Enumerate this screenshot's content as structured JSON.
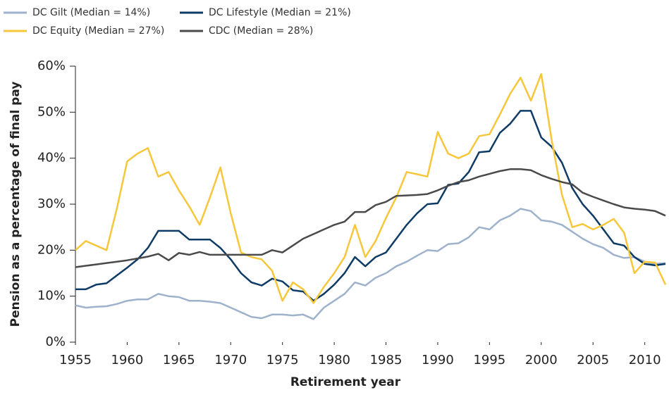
{
  "chart_data": {
    "type": "line",
    "x": [
      1955,
      1956,
      1957,
      1958,
      1959,
      1960,
      1961,
      1962,
      1963,
      1964,
      1965,
      1966,
      1967,
      1968,
      1969,
      1970,
      1971,
      1972,
      1973,
      1974,
      1975,
      1976,
      1977,
      1978,
      1979,
      1980,
      1981,
      1982,
      1983,
      1984,
      1985,
      1986,
      1987,
      1988,
      1989,
      1990,
      1991,
      1992,
      1993,
      1994,
      1995,
      1996,
      1997,
      1998,
      1999,
      2000,
      2001,
      2002,
      2003,
      2004,
      2005,
      2006,
      2007,
      2008,
      2009,
      2010,
      2011,
      2012
    ],
    "series": [
      {
        "name": "DC Gilt (Median = 14%)",
        "color": "#9fb2cc",
        "values": [
          8,
          7.5,
          7.7,
          7.8,
          8.3,
          9,
          9.3,
          9.3,
          10.5,
          10,
          9.8,
          9,
          9,
          8.8,
          8.5,
          7.5,
          6.5,
          5.5,
          5.2,
          6,
          6,
          5.8,
          6,
          5,
          7.5,
          9,
          10.5,
          13,
          12.3,
          14,
          15,
          16.5,
          17.5,
          18.8,
          20,
          19.8,
          21.3,
          21.5,
          22.8,
          25,
          24.5,
          26.5,
          27.5,
          29,
          28.5,
          26.5,
          26.2,
          25.5,
          24,
          22.5,
          21.3,
          20.5,
          19,
          18.3,
          18.5,
          17.5,
          17,
          17.2
        ]
      },
      {
        "name": "DC Lifestyle (Median = 21%)",
        "color": "#0d3b66",
        "values": [
          11.5,
          11.5,
          12.5,
          12.8,
          14.5,
          16.2,
          18,
          20.5,
          24.2,
          24.2,
          24.2,
          22.3,
          22.3,
          22.3,
          20.5,
          18,
          15,
          13,
          12.3,
          13.8,
          13.2,
          11.3,
          11,
          9,
          10.5,
          12.5,
          15,
          18.5,
          16.5,
          18.5,
          19.5,
          22.5,
          25.5,
          28,
          30,
          30.2,
          34.2,
          34.5,
          37,
          41.3,
          41.5,
          45.5,
          47.5,
          50.3,
          50.3,
          44.5,
          42.5,
          39,
          33.5,
          30,
          27.5,
          24.5,
          21.5,
          21,
          18.5,
          17,
          16.7,
          17
        ]
      },
      {
        "name": "DC Equity (Median = 27%)",
        "color": "#f6c73b",
        "values": [
          20,
          22,
          21,
          20,
          29,
          39.3,
          41,
          42.2,
          36,
          37,
          33,
          29.5,
          25.5,
          31.5,
          38,
          28,
          19.5,
          18.5,
          18,
          15.5,
          9,
          13,
          11.5,
          8.5,
          12,
          15,
          18.5,
          25.5,
          18.5,
          22,
          27,
          31.5,
          37,
          36.5,
          36,
          45.7,
          41,
          40,
          41,
          44.8,
          45.2,
          49.5,
          54,
          57.5,
          52.5,
          58.3,
          44,
          32,
          25,
          25.7,
          24.5,
          25.5,
          26.8,
          23.8,
          15,
          17.5,
          17.3,
          12.5
        ]
      },
      {
        "name": "CDC (Median = 28%)",
        "color": "#4a4a4a",
        "values": [
          16.3,
          16.6,
          16.9,
          17.2,
          17.5,
          17.8,
          18.2,
          18.6,
          19.2,
          17.8,
          19.4,
          19,
          19.6,
          19,
          19,
          19,
          19,
          19,
          19,
          20,
          19.5,
          21,
          22.5,
          23.5,
          24.5,
          25.5,
          26.2,
          28.3,
          28.3,
          29.8,
          30.5,
          31.8,
          31.9,
          32,
          32.2,
          33,
          34,
          34.8,
          35.2,
          36,
          36.6,
          37.2,
          37.6,
          37.6,
          37.4,
          36.3,
          35.5,
          34.8,
          34.3,
          32.5,
          31.6,
          30.8,
          30,
          29.3,
          29,
          28.8,
          28.5,
          27.5
        ]
      }
    ],
    "xlabel": "Retirement year",
    "ylabel": "Pension as a percentage of final pay",
    "xlim": [
      1955,
      2012
    ],
    "ylim": [
      0,
      60
    ],
    "xticks": [
      1955,
      1960,
      1965,
      1970,
      1975,
      1980,
      1985,
      1990,
      1995,
      2000,
      2005,
      2010
    ],
    "yticks": [
      {
        "value": 0,
        "label": "0%"
      },
      {
        "value": 10,
        "label": "10%"
      },
      {
        "value": 20,
        "label": "20%"
      },
      {
        "value": 30,
        "label": "30%"
      },
      {
        "value": 40,
        "label": "40%"
      },
      {
        "value": 50,
        "label": "50%"
      },
      {
        "value": 60,
        "label": "60%"
      }
    ]
  }
}
